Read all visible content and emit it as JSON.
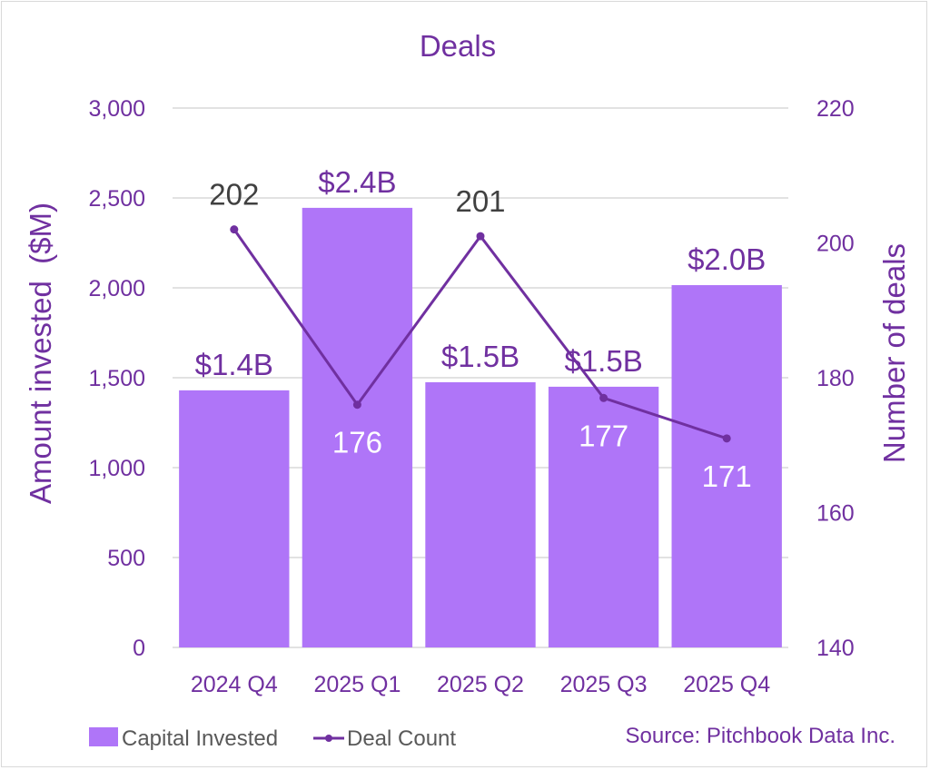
{
  "chart_data": {
    "type": "bar",
    "title": "Deals",
    "categories": [
      "2024 Q4",
      "2025 Q1",
      "2025 Q2",
      "2025 Q3",
      "2025 Q4"
    ],
    "series": [
      {
        "name": "Capital Invested",
        "type": "bar",
        "axis": "left",
        "values": [
          1430,
          2445,
          1475,
          1450,
          2015
        ],
        "data_labels": [
          "$1.4B",
          "$2.4B",
          "$1.5B",
          "$1.5B",
          "$2.0B"
        ],
        "color": "#af75f8"
      },
      {
        "name": "Deal Count",
        "type": "line",
        "axis": "right",
        "values": [
          202,
          176,
          201,
          177,
          171
        ],
        "data_labels": [
          "202",
          "176",
          "201",
          "177",
          "171"
        ],
        "data_label_colors": [
          "#404040",
          "#ffffff",
          "#404040",
          "#ffffff",
          "#ffffff"
        ],
        "data_label_position": [
          "above",
          "below",
          "above",
          "below",
          "below"
        ],
        "color": "#7030a0"
      }
    ],
    "ylabel": "Amount invested  ($M)",
    "ylim": [
      0,
      3000
    ],
    "yticks": [
      0,
      500,
      1000,
      1500,
      2000,
      2500,
      3000
    ],
    "ytick_labels": [
      "0",
      "500",
      "1,000",
      "1,500",
      "2,000",
      "2,500",
      "3,000"
    ],
    "y2label": "Number of deals",
    "y2lim": [
      140,
      220
    ],
    "y2ticks": [
      140,
      160,
      180,
      200,
      220
    ],
    "y2tick_labels": [
      "140",
      "160",
      "180",
      "200",
      "220"
    ],
    "grid": true,
    "legend": {
      "placement": "bottom-left",
      "entries": [
        "Capital Invested",
        "Deal Count"
      ]
    },
    "annotations": [
      "Source: Pitchbook Data Inc."
    ]
  },
  "colors": {
    "bar": "#af75f8",
    "line": "#7030a0",
    "text_accent": "#7030a0",
    "grid": "#d9d9d9"
  }
}
